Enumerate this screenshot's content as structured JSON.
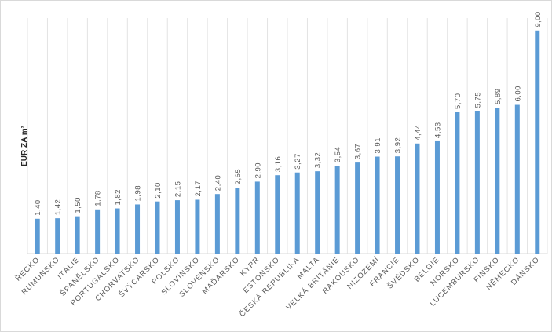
{
  "chart_data": {
    "type": "bar",
    "title": "",
    "xlabel": "",
    "ylabel": "EUR ZA m³",
    "ylim": [
      0,
      9.5
    ],
    "grid": "vertical",
    "bar_color": "#5b9bd5",
    "grid_color": "#e3e3e3",
    "categories": [
      "ŘECKO",
      "RUMUNSKO",
      "ITÁLIE",
      "ŠPANĚLSKO",
      "PORTUGALSKO",
      "CHORVATSKO",
      "ŠVÝCARSKO",
      "POLSKO",
      "SLOVINSKO",
      "SLOVENSKO",
      "MAĎARSKO",
      "KYPR",
      "ESTONSKO",
      "ČESKÁ REPUBLIKA",
      "MALTA",
      "VELKÁ BRITÁNIE",
      "RAKOUSKO",
      "NIZOZEMÍ",
      "FRANCIE",
      "ŠVÉDSKO",
      "BELGIE",
      "NORSKO",
      "LUCEMBURSKO",
      "FINSKO",
      "NĚMECKO",
      "DÁNSKO"
    ],
    "values": [
      1.4,
      1.42,
      1.5,
      1.78,
      1.82,
      1.98,
      2.1,
      2.15,
      2.17,
      2.4,
      2.65,
      2.9,
      3.16,
      3.27,
      3.32,
      3.54,
      3.67,
      3.91,
      3.92,
      4.44,
      4.53,
      5.7,
      5.75,
      5.89,
      6.0,
      9.0
    ],
    "value_labels": [
      "1,40",
      "1,42",
      "1,50",
      "1,78",
      "1,82",
      "1,98",
      "2,10",
      "2,15",
      "2,17",
      "2,40",
      "2,65",
      "2,90",
      "3,16",
      "3,27",
      "3,32",
      "3,54",
      "3,67",
      "3,91",
      "3,92",
      "4,44",
      "4,53",
      "5,70",
      "5,75",
      "5,89",
      "6,00",
      "9,00"
    ]
  }
}
